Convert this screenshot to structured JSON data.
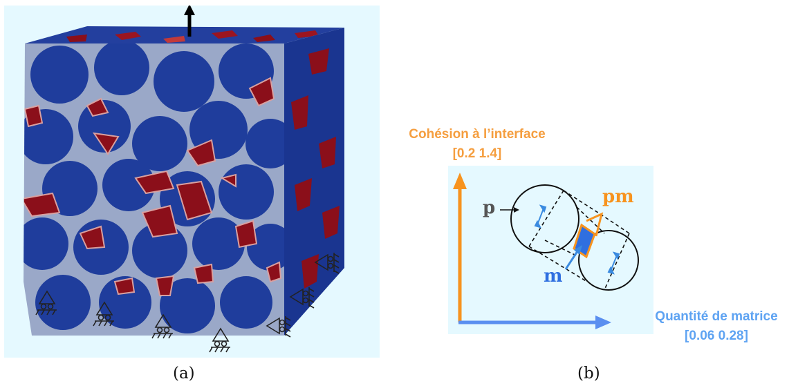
{
  "captions": {
    "left": "(a)",
    "right": "(b)"
  },
  "axes": {
    "y_title": "Cohésion à l’interface",
    "y_range": "[0.2  1.4]",
    "x_title": "Quantité de matrice",
    "x_range": "[0.06  0.28]"
  },
  "tags": {
    "particle": "p",
    "matrix": "m",
    "interface": "pm"
  },
  "colors": {
    "background": "#e5f9ff",
    "cube_blue": "#1f3d9c",
    "damage_red": "#8b0f1a",
    "cohesion_axis": "#f7931e",
    "matrix_axis": "#5a8ff0",
    "matrix_blue": "#2f6fe0"
  },
  "icons": [
    "load-arrow-icon",
    "roller-support-icon"
  ]
}
